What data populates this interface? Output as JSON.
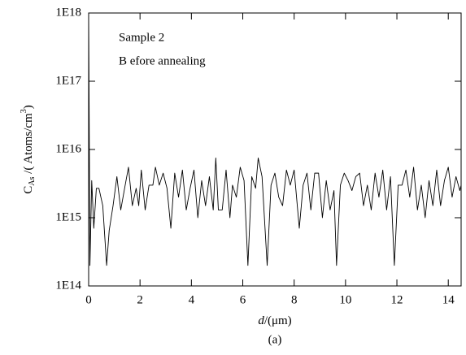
{
  "chart_data": {
    "type": "line",
    "annotations": [
      "Sample  2",
      "B efore annealing"
    ],
    "x_label": {
      "italic": "d",
      "rest": "/(μm)"
    },
    "y_label": {
      "main": "C",
      "sub": "As",
      "rest": " /( Atoms/cm",
      "sup": "3",
      "end": ")"
    },
    "caption": "(a)",
    "log_y": true,
    "grid": false,
    "xlim": [
      0,
      14.5
    ],
    "ylim": [
      100000000000000.0,
      1e+18
    ],
    "xticks": [
      0,
      2,
      4,
      6,
      8,
      10,
      12,
      14
    ],
    "yticks": [
      {
        "value": 100000000000000.0,
        "label": "1E14"
      },
      {
        "value": 1000000000000000.0,
        "label": "1E15"
      },
      {
        "value": 1e+16,
        "label": "1E16"
      },
      {
        "value": 1e+17,
        "label": "1E17"
      },
      {
        "value": 1e+18,
        "label": "1E18"
      }
    ],
    "x": [
      0,
      0.05,
      0.12,
      0.2,
      0.3,
      0.4,
      0.55,
      0.7,
      0.8,
      0.95,
      1.1,
      1.25,
      1.4,
      1.55,
      1.7,
      1.85,
      1.95,
      2.05,
      2.2,
      2.35,
      2.5,
      2.6,
      2.75,
      2.9,
      3.05,
      3.2,
      3.35,
      3.5,
      3.65,
      3.8,
      3.95,
      4.1,
      4.25,
      4.4,
      4.55,
      4.7,
      4.85,
      4.95,
      5.05,
      5.2,
      5.35,
      5.5,
      5.6,
      5.75,
      5.9,
      6.05,
      6.2,
      6.35,
      6.5,
      6.6,
      6.75,
      6.95,
      7.1,
      7.25,
      7.4,
      7.55,
      7.7,
      7.85,
      8.0,
      8.2,
      8.35,
      8.5,
      8.65,
      8.8,
      8.95,
      9.1,
      9.25,
      9.4,
      9.55,
      9.65,
      9.8,
      9.95,
      10.1,
      10.25,
      10.4,
      10.55,
      10.7,
      10.85,
      11.0,
      11.15,
      11.3,
      11.45,
      11.6,
      11.75,
      11.9,
      12.05,
      12.2,
      12.35,
      12.5,
      12.65,
      12.8,
      12.95,
      13.1,
      13.25,
      13.4,
      13.55,
      13.7,
      13.85,
      14.0,
      14.15,
      14.3,
      14.45,
      14.5
    ],
    "series": [
      {
        "color": "#000000",
        "values": [
          1e+18,
          200000000000000.0,
          3500000000000000.0,
          700000000000000.0,
          2700000000000000.0,
          2700000000000000.0,
          1500000000000000.0,
          200000000000000.0,
          650000000000000.0,
          1500000000000000.0,
          4000000000000000.0,
          1300000000000000.0,
          2700000000000000.0,
          5500000000000000.0,
          1500000000000000.0,
          2700000000000000.0,
          1500000000000000.0,
          5000000000000000.0,
          1300000000000000.0,
          3000000000000000.0,
          3000000000000000.0,
          5500000000000000.0,
          3000000000000000.0,
          4500000000000000.0,
          2700000000000000.0,
          700000000000000.0,
          4500000000000000.0,
          2000000000000000.0,
          5000000000000000.0,
          1300000000000000.0,
          2700000000000000.0,
          5000000000000000.0,
          1000000000000000.0,
          3500000000000000.0,
          1500000000000000.0,
          4000000000000000.0,
          1300000000000000.0,
          7500000000000000.0,
          1300000000000000.0,
          1300000000000000.0,
          5000000000000000.0,
          1000000000000000.0,
          3000000000000000.0,
          2000000000000000.0,
          5500000000000000.0,
          3500000000000000.0,
          200000000000000.0,
          4000000000000000.0,
          2700000000000000.0,
          7500000000000000.0,
          4000000000000000.0,
          200000000000000.0,
          3000000000000000.0,
          4500000000000000.0,
          2000000000000000.0,
          1500000000000000.0,
          5000000000000000.0,
          3000000000000000.0,
          5000000000000000.0,
          700000000000000.0,
          3000000000000000.0,
          4500000000000000.0,
          1300000000000000.0,
          4500000000000000.0,
          4500000000000000.0,
          1000000000000000.0,
          3500000000000000.0,
          1300000000000000.0,
          2500000000000000.0,
          200000000000000.0,
          3000000000000000.0,
          4500000000000000.0,
          3500000000000000.0,
          2500000000000000.0,
          4000000000000000.0,
          4500000000000000.0,
          1500000000000000.0,
          3000000000000000.0,
          1300000000000000.0,
          4500000000000000.0,
          2000000000000000.0,
          5000000000000000.0,
          1300000000000000.0,
          4000000000000000.0,
          200000000000000.0,
          3000000000000000.0,
          3000000000000000.0,
          5000000000000000.0,
          2000000000000000.0,
          5500000000000000.0,
          1300000000000000.0,
          3000000000000000.0,
          1000000000000000.0,
          3500000000000000.0,
          1500000000000000.0,
          5000000000000000.0,
          1500000000000000.0,
          3500000000000000.0,
          5500000000000000.0,
          2000000000000000.0,
          4000000000000000.0,
          2500000000000000.0,
          3000000000000000.0
        ]
      }
    ]
  }
}
